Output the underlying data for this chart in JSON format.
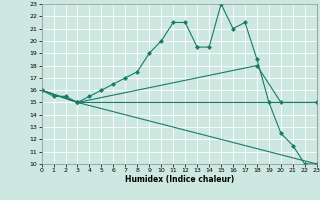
{
  "title": "",
  "xlabel": "Humidex (Indice chaleur)",
  "bg_color": "#cce8e0",
  "grid_color": "#ffffff",
  "line_color": "#1a7a6a",
  "xlim": [
    0,
    23
  ],
  "ylim": [
    10,
    23
  ],
  "xticks": [
    0,
    1,
    2,
    3,
    4,
    5,
    6,
    7,
    8,
    9,
    10,
    11,
    12,
    13,
    14,
    15,
    16,
    17,
    18,
    19,
    20,
    21,
    22,
    23
  ],
  "yticks": [
    10,
    11,
    12,
    13,
    14,
    15,
    16,
    17,
    18,
    19,
    20,
    21,
    22,
    23
  ],
  "series": [
    {
      "x": [
        0,
        1,
        2,
        3,
        4,
        5,
        6,
        7,
        8,
        9,
        10,
        11,
        12,
        13,
        14,
        15,
        16,
        17,
        18,
        19,
        20,
        21,
        22,
        23
      ],
      "y": [
        16,
        15.5,
        15.5,
        15,
        15.5,
        16,
        16.5,
        17,
        17.5,
        19,
        20,
        21.5,
        21.5,
        19.5,
        19.5,
        23,
        21,
        21.5,
        18.5,
        15,
        12.5,
        11.5,
        10,
        10
      ]
    },
    {
      "x": [
        0,
        3,
        23
      ],
      "y": [
        16,
        15,
        10
      ]
    },
    {
      "x": [
        0,
        3,
        23
      ],
      "y": [
        16,
        15,
        15
      ]
    },
    {
      "x": [
        0,
        3,
        18,
        20,
        23
      ],
      "y": [
        16,
        15,
        18,
        15,
        15
      ]
    }
  ]
}
